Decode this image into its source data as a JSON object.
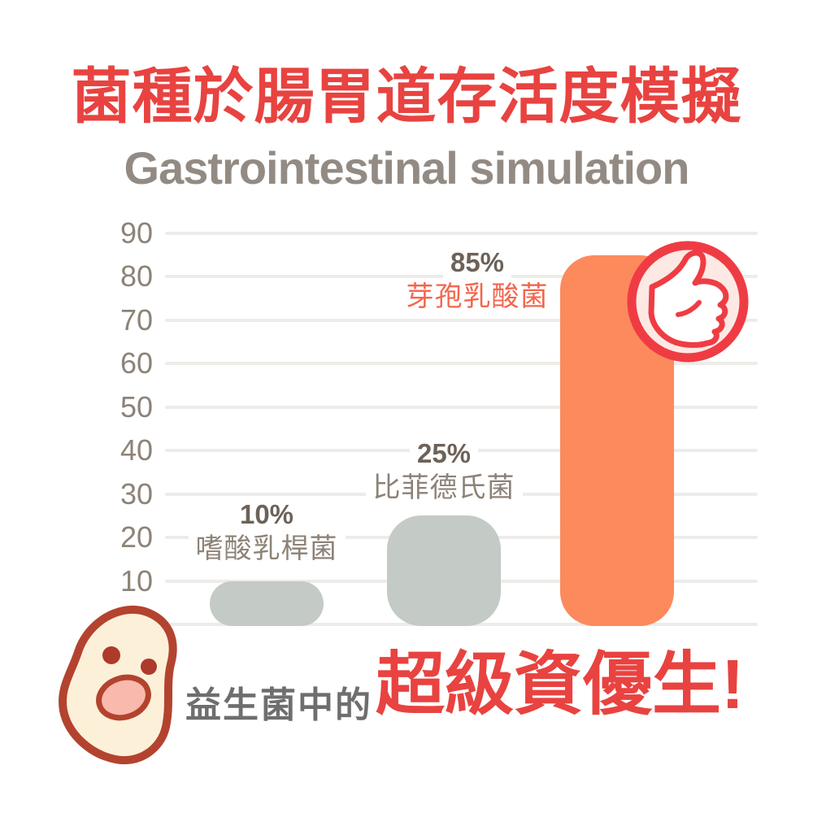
{
  "title": "菌種於腸胃道存活度模擬",
  "subtitle": "Gastrointestinal simulation",
  "chart_data": {
    "type": "bar",
    "title": "菌種於腸胃道存活度模擬",
    "subtitle": "Gastrointestinal simulation",
    "categories": [
      "嗜酸乳桿菌",
      "比菲德氏菌",
      "芽孢乳酸菌"
    ],
    "values": [
      10,
      25,
      85
    ],
    "value_labels": [
      "10%",
      "25%",
      "85%"
    ],
    "ylim": [
      0,
      90
    ],
    "yticks": [
      90,
      80,
      70,
      60,
      50,
      40,
      30,
      20,
      10
    ],
    "grid": true,
    "legend_position": "none",
    "bar_colors": [
      "#c4cac5",
      "#c4cac5",
      "#fc8a5d"
    ],
    "category_label_colors": [
      "#8d8277",
      "#8d8277",
      "#f3664c"
    ],
    "highlight_index": 2,
    "highlight_badge": "thumbs-up"
  },
  "footer": {
    "prefix": "益生菌中的",
    "headline": "超級資優生!"
  },
  "icons": {
    "badge": "thumbs-up-icon",
    "mascot": "bean-mascot-icon"
  },
  "colors": {
    "title_red": "#e84340",
    "subtitle_gray": "#938b83",
    "grid_gray": "#eeebe8",
    "tick_gray": "#8d8378",
    "value_label_gray": "#6d6259",
    "badge_red": "#ef3c44",
    "badge_fill": "#fde9e4",
    "mascot_outline": "#b3432f",
    "mascot_fill": "#fcf0d9",
    "mascot_mouth": "#f9b9ac",
    "footer_gray": "#6e6e6e",
    "headline_red": "#e84340",
    "background": "#ffffff"
  }
}
